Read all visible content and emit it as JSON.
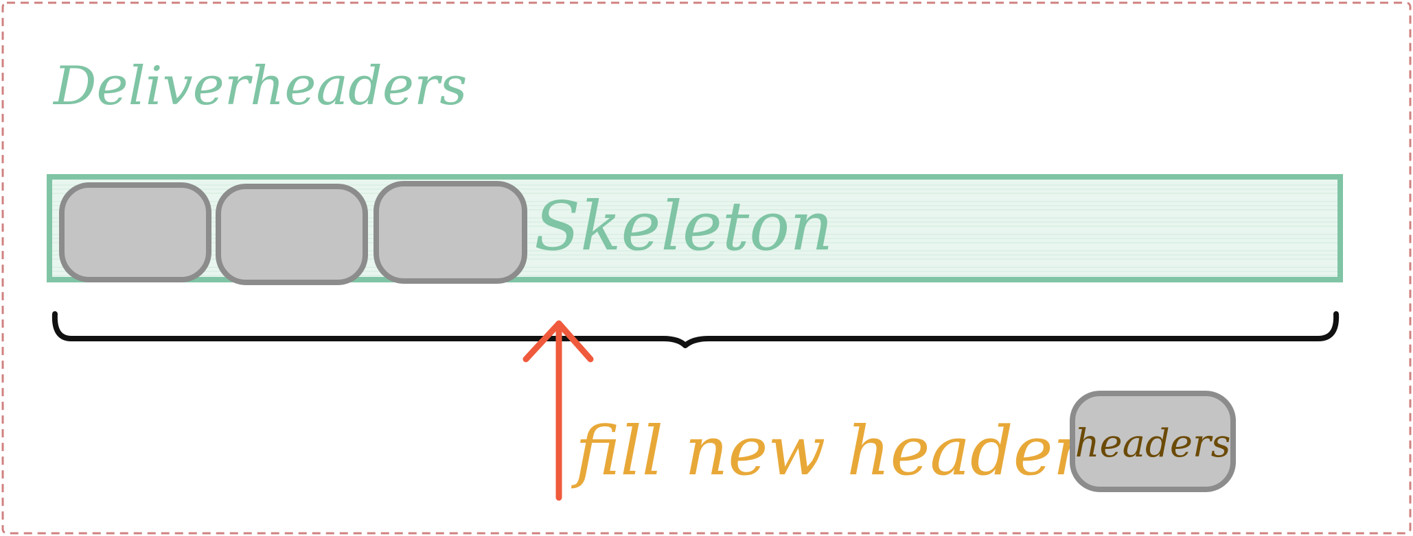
{
  "diagram": {
    "title": "Deliverheaders",
    "skeleton_label": "Skeleton",
    "action_label": "fill new headers",
    "legend_box_label": "headers",
    "colors": {
      "frame_border": "#d08080",
      "skeleton_stroke": "#7fc4a4",
      "skeleton_fill": "#e8f6ef",
      "block_fill": "#c4c4c4",
      "block_stroke": "#8c8c8c",
      "brace": "#111111",
      "arrow": "#f05a3c",
      "action_text": "#e8a838",
      "legend_text": "#6b4a06"
    }
  }
}
